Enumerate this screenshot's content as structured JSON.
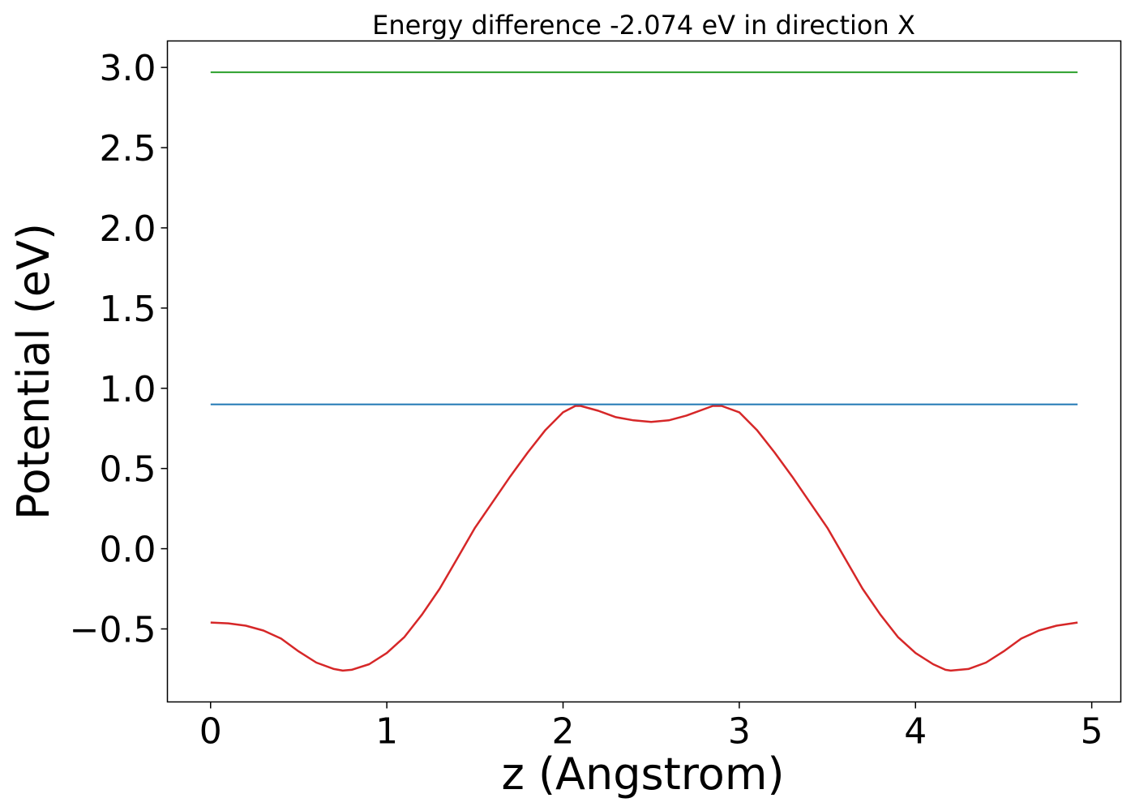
{
  "chart_data": {
    "type": "line",
    "title": "Energy difference -2.074 eV in direction X",
    "xlabel": "z (Angstrom)",
    "ylabel": "Potential (eV)",
    "xlim": [
      -0.245,
      5.165
    ],
    "ylim": [
      -0.955,
      3.165
    ],
    "xticks": [
      0,
      1,
      2,
      3,
      4,
      5
    ],
    "xtick_labels": [
      "0",
      "1",
      "2",
      "3",
      "4",
      "5"
    ],
    "yticks": [
      -0.5,
      0.0,
      0.5,
      1.0,
      1.5,
      2.0,
      2.5,
      3.0
    ],
    "ytick_labels": [
      "−0.5",
      "0.0",
      "0.5",
      "1.0",
      "1.5",
      "2.0",
      "2.5",
      "3.0"
    ],
    "grid": false,
    "series": [
      {
        "color": "#d62728",
        "x": [
          0,
          0.1,
          0.2,
          0.3,
          0.4,
          0.5,
          0.6,
          0.7,
          0.75,
          0.8,
          0.9,
          1.0,
          1.1,
          1.2,
          1.3,
          1.4,
          1.5,
          1.6,
          1.7,
          1.8,
          1.9,
          2.0,
          2.07,
          2.1,
          2.2,
          2.3,
          2.4,
          2.5,
          2.6,
          2.7,
          2.8,
          2.85,
          2.9,
          3.0,
          3.1,
          3.2,
          3.3,
          3.4,
          3.5,
          3.6,
          3.7,
          3.8,
          3.9,
          4.0,
          4.1,
          4.17,
          4.2,
          4.3,
          4.4,
          4.5,
          4.6,
          4.7,
          4.8,
          4.92
        ],
        "y": [
          -0.46,
          -0.465,
          -0.48,
          -0.51,
          -0.56,
          -0.64,
          -0.71,
          -0.75,
          -0.76,
          -0.755,
          -0.72,
          -0.65,
          -0.55,
          -0.41,
          -0.25,
          -0.06,
          0.13,
          0.29,
          0.45,
          0.6,
          0.74,
          0.85,
          0.89,
          0.89,
          0.86,
          0.82,
          0.8,
          0.79,
          0.8,
          0.83,
          0.87,
          0.89,
          0.89,
          0.85,
          0.74,
          0.6,
          0.45,
          0.29,
          0.13,
          -0.06,
          -0.25,
          -0.41,
          -0.55,
          -0.65,
          -0.72,
          -0.755,
          -0.76,
          -0.75,
          -0.71,
          -0.64,
          -0.56,
          -0.51,
          -0.48,
          -0.46
        ]
      },
      {
        "color": "#1f77b4",
        "x": [
          0,
          4.92
        ],
        "y": [
          0.9,
          0.9
        ]
      },
      {
        "color": "#2ca02c",
        "x": [
          0,
          4.92
        ],
        "y": [
          2.97,
          2.97
        ]
      }
    ]
  }
}
